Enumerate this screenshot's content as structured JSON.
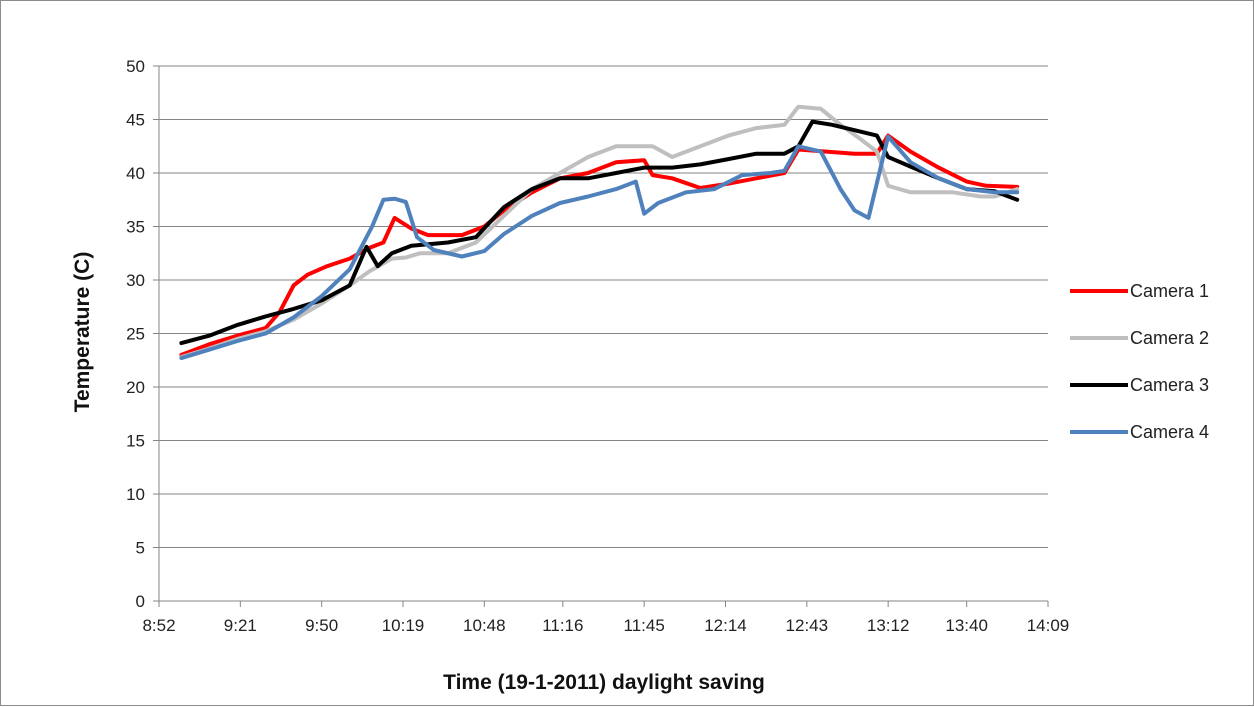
{
  "chart_data": {
    "type": "line",
    "title": "",
    "xlabel": "Time (19-1-2011) daylight saving",
    "ylabel": "Temperature (C)",
    "xlim": [
      "8:52",
      "14:09"
    ],
    "ylim": [
      0,
      50
    ],
    "x_ticks": [
      "8:52",
      "9:21",
      "9:50",
      "10:19",
      "10:48",
      "11:16",
      "11:45",
      "12:14",
      "12:43",
      "13:12",
      "13:40",
      "14:09"
    ],
    "y_ticks": [
      0,
      5,
      10,
      15,
      20,
      25,
      30,
      35,
      40,
      45,
      50
    ],
    "grid": "horizontal",
    "legend_position": "right",
    "series": [
      {
        "name": "Camera 1",
        "color": "#ff0000",
        "points": [
          [
            "9:00",
            23
          ],
          [
            "9:10",
            24
          ],
          [
            "9:20",
            24.8
          ],
          [
            "9:30",
            25.5
          ],
          [
            "9:35",
            27
          ],
          [
            "9:40",
            29.5
          ],
          [
            "9:45",
            30.5
          ],
          [
            "9:52",
            31.3
          ],
          [
            "10:00",
            32
          ],
          [
            "10:07",
            33
          ],
          [
            "10:12",
            33.5
          ],
          [
            "10:16",
            35.8
          ],
          [
            "10:22",
            34.8
          ],
          [
            "10:28",
            34.2
          ],
          [
            "10:40",
            34.2
          ],
          [
            "10:48",
            35
          ],
          [
            "10:55",
            36.5
          ],
          [
            "11:05",
            38.2
          ],
          [
            "11:15",
            39.5
          ],
          [
            "11:25",
            40
          ],
          [
            "11:35",
            41
          ],
          [
            "11:45",
            41.2
          ],
          [
            "11:48",
            39.8
          ],
          [
            "11:55",
            39.5
          ],
          [
            "12:05",
            38.6
          ],
          [
            "12:15",
            39
          ],
          [
            "12:25",
            39.5
          ],
          [
            "12:35",
            40
          ],
          [
            "12:40",
            42.2
          ],
          [
            "12:50",
            42
          ],
          [
            "13:00",
            41.8
          ],
          [
            "13:08",
            41.8
          ],
          [
            "13:12",
            43.5
          ],
          [
            "13:20",
            42
          ],
          [
            "13:30",
            40.5
          ],
          [
            "13:40",
            39.2
          ],
          [
            "13:47",
            38.8
          ],
          [
            "13:58",
            38.7
          ]
        ]
      },
      {
        "name": "Camera 2",
        "color": "#bfbfbf",
        "points": [
          [
            "9:00",
            22.8
          ],
          [
            "9:10",
            23.6
          ],
          [
            "9:20",
            24.5
          ],
          [
            "9:30",
            25.2
          ],
          [
            "9:40",
            26.3
          ],
          [
            "9:50",
            27.8
          ],
          [
            "10:00",
            29.5
          ],
          [
            "10:07",
            30.8
          ],
          [
            "10:15",
            32
          ],
          [
            "10:20",
            32.1
          ],
          [
            "10:25",
            32.5
          ],
          [
            "10:35",
            32.5
          ],
          [
            "10:45",
            33.5
          ],
          [
            "10:55",
            36
          ],
          [
            "11:05",
            38.5
          ],
          [
            "11:15",
            40
          ],
          [
            "11:25",
            41.5
          ],
          [
            "11:35",
            42.5
          ],
          [
            "11:48",
            42.5
          ],
          [
            "11:55",
            41.5
          ],
          [
            "12:05",
            42.5
          ],
          [
            "12:15",
            43.5
          ],
          [
            "12:25",
            44.2
          ],
          [
            "12:35",
            44.5
          ],
          [
            "12:40",
            46.2
          ],
          [
            "12:48",
            46
          ],
          [
            "12:55",
            44.5
          ],
          [
            "13:02",
            43.2
          ],
          [
            "13:08",
            42
          ],
          [
            "13:12",
            38.8
          ],
          [
            "13:20",
            38.2
          ],
          [
            "13:35",
            38.2
          ],
          [
            "13:45",
            37.8
          ],
          [
            "13:50",
            37.8
          ],
          [
            "13:58",
            38.5
          ]
        ]
      },
      {
        "name": "Camera 3",
        "color": "#000000",
        "points": [
          [
            "9:00",
            24.1
          ],
          [
            "9:10",
            24.8
          ],
          [
            "9:20",
            25.8
          ],
          [
            "9:30",
            26.6
          ],
          [
            "9:40",
            27.3
          ],
          [
            "9:50",
            28.1
          ],
          [
            "10:00",
            29.5
          ],
          [
            "10:06",
            33.1
          ],
          [
            "10:10",
            31.3
          ],
          [
            "10:15",
            32.5
          ],
          [
            "10:22",
            33.2
          ],
          [
            "10:35",
            33.5
          ],
          [
            "10:45",
            34
          ],
          [
            "10:55",
            36.8
          ],
          [
            "11:05",
            38.5
          ],
          [
            "11:15",
            39.5
          ],
          [
            "11:25",
            39.5
          ],
          [
            "11:35",
            40
          ],
          [
            "11:45",
            40.5
          ],
          [
            "11:55",
            40.5
          ],
          [
            "12:05",
            40.8
          ],
          [
            "12:15",
            41.3
          ],
          [
            "12:25",
            41.8
          ],
          [
            "12:35",
            41.8
          ],
          [
            "12:40",
            42.5
          ],
          [
            "12:45",
            44.8
          ],
          [
            "12:52",
            44.5
          ],
          [
            "13:00",
            44
          ],
          [
            "13:08",
            43.5
          ],
          [
            "13:12",
            41.5
          ],
          [
            "13:20",
            40.6
          ],
          [
            "13:30",
            39.5
          ],
          [
            "13:40",
            38.5
          ],
          [
            "13:50",
            38.3
          ],
          [
            "13:58",
            37.5
          ]
        ]
      },
      {
        "name": "Camera 4",
        "color": "#4f81bd",
        "points": [
          [
            "9:00",
            22.7
          ],
          [
            "9:10",
            23.5
          ],
          [
            "9:20",
            24.3
          ],
          [
            "9:30",
            25
          ],
          [
            "9:40",
            26.5
          ],
          [
            "9:50",
            28.5
          ],
          [
            "10:00",
            31
          ],
          [
            "10:08",
            35
          ],
          [
            "10:12",
            37.5
          ],
          [
            "10:16",
            37.6
          ],
          [
            "10:20",
            37.3
          ],
          [
            "10:24",
            34
          ],
          [
            "10:30",
            32.8
          ],
          [
            "10:40",
            32.2
          ],
          [
            "10:48",
            32.7
          ],
          [
            "10:55",
            34.3
          ],
          [
            "11:05",
            36
          ],
          [
            "11:15",
            37.2
          ],
          [
            "11:25",
            37.8
          ],
          [
            "11:35",
            38.5
          ],
          [
            "11:42",
            39.2
          ],
          [
            "11:45",
            36.2
          ],
          [
            "11:50",
            37.2
          ],
          [
            "12:00",
            38.2
          ],
          [
            "12:10",
            38.5
          ],
          [
            "12:20",
            39.8
          ],
          [
            "12:30",
            40
          ],
          [
            "12:35",
            40.2
          ],
          [
            "12:40",
            42.5
          ],
          [
            "12:48",
            42
          ],
          [
            "12:55",
            38.5
          ],
          [
            "13:00",
            36.5
          ],
          [
            "13:05",
            35.8
          ],
          [
            "13:12",
            43.4
          ],
          [
            "13:20",
            41
          ],
          [
            "13:30",
            39.5
          ],
          [
            "13:40",
            38.5
          ],
          [
            "13:50",
            38.2
          ],
          [
            "13:58",
            38.2
          ]
        ]
      }
    ]
  }
}
